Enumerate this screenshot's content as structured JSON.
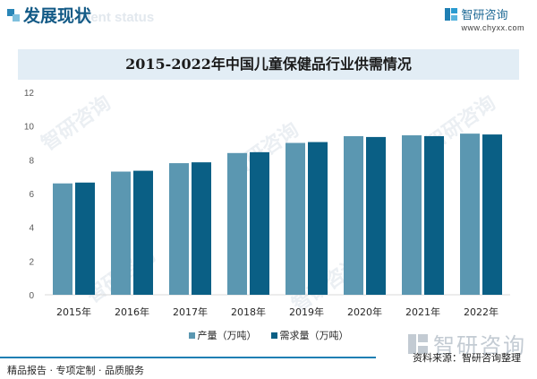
{
  "header": {
    "section_title": "发展现状",
    "section_subtitle": "ment status",
    "brand_name": "智研咨询",
    "brand_url": "www.chyxx.com"
  },
  "colors": {
    "accent": "#1f7fb3",
    "series_production": "#5b97b1",
    "series_demand": "#0a5f85",
    "title_bar": "#e2edf5"
  },
  "chart_data": {
    "type": "bar",
    "title": "2015-2022年中国儿童保健品行业供需情况",
    "categories": [
      "2015年",
      "2016年",
      "2017年",
      "2018年",
      "2019年",
      "2020年",
      "2021年",
      "2022年"
    ],
    "series": [
      {
        "name": "产量（万吨）",
        "values": [
          6.6,
          7.3,
          7.8,
          8.4,
          9.0,
          9.4,
          9.45,
          9.55
        ]
      },
      {
        "name": "需求量（万吨）",
        "values": [
          6.65,
          7.35,
          7.85,
          8.45,
          9.05,
          9.35,
          9.4,
          9.5
        ]
      }
    ],
    "ylim": [
      0,
      12
    ],
    "yticks": [
      0,
      2,
      4,
      6,
      8,
      10,
      12
    ],
    "legend": "bottom",
    "grid": false
  },
  "watermark": "智研咨询",
  "footer": {
    "source": "资料来源：智研咨询整理",
    "tagline": "精品报告 · 专项定制 · 品质服务",
    "brand_name": "智研咨询"
  }
}
